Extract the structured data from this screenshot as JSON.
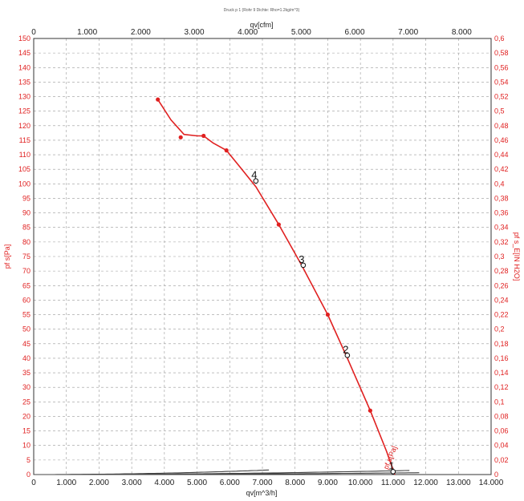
{
  "chart_data": {
    "type": "line",
    "title": "Druck p 1 (Rohr 9 Dichte: Rho=1.2kg/m^3)",
    "xlabel_bottom": "qv[m^3/h]",
    "xlabel_top": "qv[cfm]",
    "ylabel_left": "pf s[Pa]",
    "ylabel_right": "pf s_E[IN H2O]",
    "curve_label": "pf s[Pa]",
    "xlim": [
      0,
      14000
    ],
    "ylim": [
      0,
      150
    ],
    "x_ticks": [
      "0",
      "1.000",
      "2.000",
      "3.000",
      "4.000",
      "5.000",
      "6.000",
      "7.000",
      "8.000",
      "9.000",
      "10.000",
      "11.000",
      "12.000",
      "13.000",
      "14.000"
    ],
    "x_ticks_top": [
      "0",
      "1.000",
      "2.000",
      "3.000",
      "4.000",
      "5.000",
      "6.000",
      "7.000",
      "8.000"
    ],
    "y_ticks": [
      "0",
      "5",
      "10",
      "15",
      "20",
      "25",
      "30",
      "35",
      "40",
      "45",
      "50",
      "55",
      "60",
      "65",
      "70",
      "75",
      "80",
      "85",
      "90",
      "95",
      "100",
      "105",
      "110",
      "115",
      "120",
      "125",
      "130",
      "135",
      "140",
      "145",
      "150"
    ],
    "y_ticks_right": [
      "0",
      "0,02",
      "0,04",
      "0,06",
      "0,08",
      "0,1",
      "0,12",
      "0,14",
      "0,16",
      "0,18",
      "0,2",
      "0,22",
      "0,24",
      "0,26",
      "0,28",
      "0,3",
      "0,32",
      "0,34",
      "0,36",
      "0,38",
      "0,4",
      "0,42",
      "0,44",
      "0,46",
      "0,48",
      "0,5",
      "0,52",
      "0,54",
      "0,56",
      "0,58",
      "0,6"
    ],
    "grid": true,
    "fan_curve": {
      "color": "#e02020",
      "x": [
        3800,
        4200,
        4600,
        5000,
        5200,
        5500,
        5900,
        6300,
        6800,
        7500,
        8200,
        9000,
        9600,
        10300,
        10800,
        11050
      ],
      "y": [
        129,
        122,
        117,
        116.5,
        116.5,
        114,
        111.5,
        106,
        99,
        86,
        72,
        55,
        40,
        22,
        8,
        0
      ],
      "points": [
        {
          "x": 3800,
          "y": 129
        },
        {
          "x": 4500,
          "y": 116
        },
        {
          "x": 5200,
          "y": 116.5
        },
        {
          "x": 5900,
          "y": 111.5
        },
        {
          "x": 7500,
          "y": 86
        },
        {
          "x": 9000,
          "y": 55
        },
        {
          "x": 10300,
          "y": 22
        }
      ]
    },
    "system_curves": [
      {
        "color": "#444444",
        "k": 3.03e-08,
        "x_max": 7200,
        "label": "4",
        "label_point": {
          "x": 6800,
          "y": 101
        }
      },
      {
        "color": "#444444",
        "k": 1.06e-08,
        "x_max": 11500,
        "label": "3",
        "label_point": {
          "x": 8250,
          "y": 72
        }
      },
      {
        "color": "#444444",
        "k": 4.5e-09,
        "x_max": 11800,
        "label": "2",
        "label_point": {
          "x": 9600,
          "y": 41
        }
      },
      {
        "color": "#444444",
        "k": 0,
        "x_max": 11000,
        "label": "1",
        "label_point": {
          "x": 11000,
          "y": 1
        }
      }
    ]
  },
  "colors": {
    "axis_red": "#e02020",
    "grid": "#9a9a9a",
    "system_curve": "#444444",
    "frame": "#333333"
  }
}
